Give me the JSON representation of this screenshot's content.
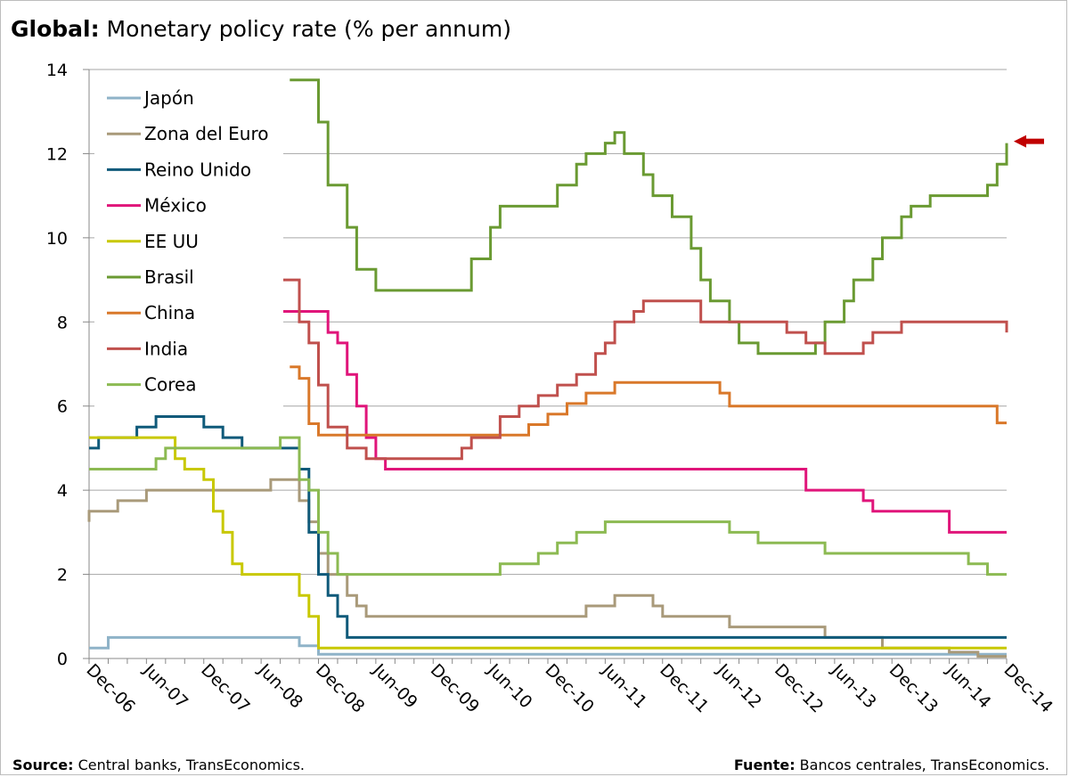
{
  "title": {
    "bold": "Global:",
    "rest": " Monetary policy rate (% per annum)"
  },
  "footer": {
    "left_label": "Source:",
    "left_text": " Central banks, TransEconomics.",
    "right_label": "Fuente:",
    "right_text": " Bancos centrales, TransEconomics."
  },
  "chart_data": {
    "type": "line",
    "title": "Global: Monetary policy rate (% per annum)",
    "xlabel": "",
    "ylabel": "",
    "ylim": [
      0,
      14
    ],
    "yticks": [
      0,
      2,
      4,
      6,
      8,
      10,
      12,
      14
    ],
    "x_tick_labels": [
      "Dec-06",
      "Jun-07",
      "Dec-07",
      "Jun-08",
      "Dec-08",
      "Jun-09",
      "Dec-09",
      "Jun-10",
      "Dec-10",
      "Jun-11",
      "Dec-11",
      "Jun-12",
      "Dec-12",
      "Jun-13",
      "Dec-13",
      "Jun-14",
      "Dec-14"
    ],
    "xlim": [
      "2006-12",
      "2014-12"
    ],
    "grid": "horizontal",
    "legend_placement": "top-left",
    "annotation": "arrow pointing to Brasil end value",
    "arrow_color": "#c00000",
    "series": [
      {
        "name": "Japón",
        "color": "#8fb3c8",
        "steps": [
          [
            "2006-12",
            0.25
          ],
          [
            "2007-02",
            0.5
          ],
          [
            "2008-10",
            0.3
          ],
          [
            "2008-12",
            0.1
          ],
          [
            "2014-12",
            0.1
          ]
        ]
      },
      {
        "name": "Zona del Euro",
        "color": "#a99a7a",
        "steps": [
          [
            "2006-12",
            3.25
          ],
          [
            "2006-12",
            3.5
          ],
          [
            "2007-03",
            3.75
          ],
          [
            "2007-06",
            4.0
          ],
          [
            "2008-07",
            4.25
          ],
          [
            "2008-10",
            3.75
          ],
          [
            "2008-11",
            3.25
          ],
          [
            "2008-12",
            2.5
          ],
          [
            "2009-01",
            2.0
          ],
          [
            "2009-03",
            1.5
          ],
          [
            "2009-04",
            1.25
          ],
          [
            "2009-05",
            1.0
          ],
          [
            "2011-04",
            1.25
          ],
          [
            "2011-07",
            1.5
          ],
          [
            "2011-11",
            1.25
          ],
          [
            "2011-12",
            1.0
          ],
          [
            "2012-07",
            0.75
          ],
          [
            "2013-05",
            0.5
          ],
          [
            "2013-11",
            0.25
          ],
          [
            "2014-06",
            0.15
          ],
          [
            "2014-09",
            0.05
          ],
          [
            "2014-12",
            0.05
          ]
        ]
      },
      {
        "name": "Reino Unido",
        "color": "#0f5a7a",
        "steps": [
          [
            "2006-12",
            5.0
          ],
          [
            "2007-01",
            5.25
          ],
          [
            "2007-05",
            5.5
          ],
          [
            "2007-07",
            5.75
          ],
          [
            "2007-12",
            5.5
          ],
          [
            "2008-02",
            5.25
          ],
          [
            "2008-04",
            5.0
          ],
          [
            "2008-10",
            4.5
          ],
          [
            "2008-11",
            3.0
          ],
          [
            "2008-12",
            2.0
          ],
          [
            "2009-01",
            1.5
          ],
          [
            "2009-02",
            1.0
          ],
          [
            "2009-03",
            0.5
          ],
          [
            "2014-12",
            0.5
          ]
        ]
      },
      {
        "name": "México",
        "color": "#e0157a",
        "steps": [
          [
            "2008-08",
            8.25
          ],
          [
            "2009-01",
            7.75
          ],
          [
            "2009-02",
            7.5
          ],
          [
            "2009-03",
            6.75
          ],
          [
            "2009-04",
            6.0
          ],
          [
            "2009-05",
            5.25
          ],
          [
            "2009-06",
            4.75
          ],
          [
            "2009-07",
            4.5
          ],
          [
            "2013-03",
            4.0
          ],
          [
            "2013-09",
            3.75
          ],
          [
            "2013-10",
            3.5
          ],
          [
            "2014-06",
            3.0
          ],
          [
            "2014-12",
            3.0
          ]
        ]
      },
      {
        "name": "EE UU",
        "color": "#c8c800",
        "steps": [
          [
            "2006-12",
            5.25
          ],
          [
            "2007-09",
            4.75
          ],
          [
            "2007-10",
            4.5
          ],
          [
            "2007-12",
            4.25
          ],
          [
            "2008-01",
            3.5
          ],
          [
            "2008-02",
            3.0
          ],
          [
            "2008-03",
            2.25
          ],
          [
            "2008-04",
            2.0
          ],
          [
            "2008-10",
            1.5
          ],
          [
            "2008-11",
            1.0
          ],
          [
            "2008-12",
            0.25
          ],
          [
            "2014-12",
            0.25
          ]
        ]
      },
      {
        "name": "Brasil",
        "color": "#6a9a32",
        "steps": [
          [
            "2008-09",
            13.75
          ],
          [
            "2008-12",
            12.75
          ],
          [
            "2009-01",
            11.25
          ],
          [
            "2009-03",
            10.25
          ],
          [
            "2009-04",
            9.25
          ],
          [
            "2009-06",
            8.75
          ],
          [
            "2010-04",
            9.5
          ],
          [
            "2010-06",
            10.25
          ],
          [
            "2010-07",
            10.75
          ],
          [
            "2011-01",
            11.25
          ],
          [
            "2011-03",
            11.75
          ],
          [
            "2011-04",
            12.0
          ],
          [
            "2011-06",
            12.25
          ],
          [
            "2011-07",
            12.5
          ],
          [
            "2011-08",
            12.0
          ],
          [
            "2011-10",
            11.5
          ],
          [
            "2011-11",
            11.0
          ],
          [
            "2012-01",
            10.5
          ],
          [
            "2012-03",
            9.75
          ],
          [
            "2012-04",
            9.0
          ],
          [
            "2012-05",
            8.5
          ],
          [
            "2012-07",
            8.0
          ],
          [
            "2012-08",
            7.5
          ],
          [
            "2012-10",
            7.25
          ],
          [
            "2013-04",
            7.5
          ],
          [
            "2013-05",
            8.0
          ],
          [
            "2013-07",
            8.5
          ],
          [
            "2013-08",
            9.0
          ],
          [
            "2013-10",
            9.5
          ],
          [
            "2013-11",
            10.0
          ],
          [
            "2014-01",
            10.5
          ],
          [
            "2014-02",
            10.75
          ],
          [
            "2014-04",
            11.0
          ],
          [
            "2014-10",
            11.25
          ],
          [
            "2014-11",
            11.75
          ],
          [
            "2014-12",
            12.25
          ]
        ]
      },
      {
        "name": "China",
        "color": "#d9782a",
        "steps": [
          [
            "2008-09",
            6.93
          ],
          [
            "2008-10",
            6.66
          ],
          [
            "2008-11",
            5.58
          ],
          [
            "2008-12",
            5.31
          ],
          [
            "2010-10",
            5.56
          ],
          [
            "2010-12",
            5.81
          ],
          [
            "2011-02",
            6.06
          ],
          [
            "2011-04",
            6.31
          ],
          [
            "2011-07",
            6.56
          ],
          [
            "2012-06",
            6.31
          ],
          [
            "2012-07",
            6.0
          ],
          [
            "2014-11",
            5.6
          ],
          [
            "2014-12",
            5.6
          ]
        ]
      },
      {
        "name": "India",
        "color": "#c0504d",
        "steps": [
          [
            "2008-08",
            9.0
          ],
          [
            "2008-10",
            8.0
          ],
          [
            "2008-11",
            7.5
          ],
          [
            "2008-12",
            6.5
          ],
          [
            "2009-01",
            5.5
          ],
          [
            "2009-03",
            5.0
          ],
          [
            "2009-05",
            4.75
          ],
          [
            "2010-03",
            5.0
          ],
          [
            "2010-04",
            5.25
          ],
          [
            "2010-07",
            5.75
          ],
          [
            "2010-09",
            6.0
          ],
          [
            "2010-11",
            6.25
          ],
          [
            "2011-01",
            6.5
          ],
          [
            "2011-03",
            6.75
          ],
          [
            "2011-05",
            7.25
          ],
          [
            "2011-06",
            7.5
          ],
          [
            "2011-07",
            8.0
          ],
          [
            "2011-09",
            8.25
          ],
          [
            "2011-10",
            8.5
          ],
          [
            "2012-04",
            8.0
          ],
          [
            "2013-01",
            7.75
          ],
          [
            "2013-03",
            7.5
          ],
          [
            "2013-05",
            7.25
          ],
          [
            "2013-09",
            7.5
          ],
          [
            "2013-10",
            7.75
          ],
          [
            "2014-01",
            8.0
          ],
          [
            "2014-12",
            7.75
          ]
        ]
      },
      {
        "name": "Corea",
        "color": "#8cba52",
        "steps": [
          [
            "2006-12",
            4.5
          ],
          [
            "2007-07",
            4.75
          ],
          [
            "2007-08",
            5.0
          ],
          [
            "2008-08",
            5.25
          ],
          [
            "2008-10",
            5.0
          ],
          [
            "2008-10",
            4.25
          ],
          [
            "2008-11",
            4.0
          ],
          [
            "2008-12",
            3.0
          ],
          [
            "2009-01",
            2.5
          ],
          [
            "2009-02",
            2.0
          ],
          [
            "2010-07",
            2.25
          ],
          [
            "2010-11",
            2.5
          ],
          [
            "2011-01",
            2.75
          ],
          [
            "2011-03",
            3.0
          ],
          [
            "2011-06",
            3.25
          ],
          [
            "2012-07",
            3.0
          ],
          [
            "2012-10",
            2.75
          ],
          [
            "2013-05",
            2.5
          ],
          [
            "2014-08",
            2.25
          ],
          [
            "2014-10",
            2.0
          ],
          [
            "2014-12",
            2.0
          ]
        ]
      }
    ]
  }
}
